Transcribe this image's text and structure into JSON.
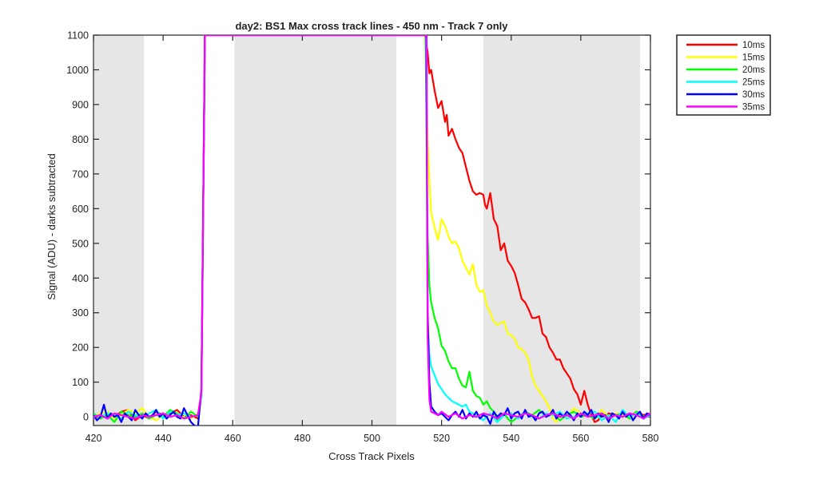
{
  "chart_data": {
    "type": "line",
    "title": "day2: BS1  Max cross track lines - 450 nm - Track 7 only",
    "xlabel": "Cross Track Pixels",
    "ylabel": "Signal (ADU) - darks subtracted",
    "xlim": [
      420,
      580
    ],
    "ylim": [
      -25,
      1100
    ],
    "x_ticks": [
      420,
      440,
      460,
      480,
      500,
      520,
      540,
      560,
      580
    ],
    "y_ticks": [
      0,
      100,
      200,
      300,
      400,
      500,
      600,
      700,
      800,
      900,
      1000,
      1100
    ],
    "grid": false,
    "legend_position": "outside-top-right",
    "shaded_regions": [
      [
        420,
        434.5
      ],
      [
        460.5,
        507
      ],
      [
        532,
        577
      ]
    ],
    "series": [
      {
        "name": "10ms",
        "color": "#ff0000",
        "x": [
          420,
          422,
          424,
          426,
          428,
          430,
          432,
          434,
          436,
          438,
          440,
          442,
          444,
          446,
          448,
          450,
          451,
          452,
          515.2,
          516,
          516.5,
          517,
          518,
          519,
          520,
          520.5,
          521,
          521.5,
          522,
          523,
          524,
          525,
          526,
          527,
          528,
          529,
          530,
          531,
          532,
          532.5,
          533,
          534,
          535,
          536,
          537,
          538,
          539,
          540,
          541,
          542,
          543,
          544,
          545,
          546,
          547,
          548,
          549,
          550,
          551,
          552,
          553,
          554,
          555,
          556,
          557,
          558,
          559,
          560,
          561,
          562,
          563,
          564,
          565,
          566,
          567,
          568,
          570,
          572,
          574,
          576,
          578,
          580
        ],
        "y": [
          5,
          -5,
          10,
          0,
          15,
          20,
          -10,
          5,
          -5,
          15,
          5,
          10,
          20,
          0,
          5,
          -5,
          60,
          1100,
          1100,
          1050,
          990,
          1000,
          940,
          890,
          910,
          880,
          850,
          870,
          810,
          830,
          800,
          775,
          760,
          720,
          680,
          650,
          640,
          645,
          640,
          610,
          600,
          645,
          570,
          550,
          480,
          500,
          450,
          435,
          415,
          380,
          340,
          330,
          310,
          285,
          285,
          290,
          240,
          230,
          200,
          185,
          165,
          165,
          140,
          125,
          110,
          80,
          65,
          35,
          75,
          35,
          5,
          -15,
          -10,
          5,
          0,
          10,
          5,
          10,
          0,
          15,
          5,
          10
        ]
      },
      {
        "name": "15ms",
        "color": "#ffff00",
        "x": [
          420,
          422,
          424,
          426,
          428,
          430,
          432,
          434,
          436,
          438,
          440,
          442,
          444,
          446,
          448,
          450,
          451,
          452,
          515.3,
          516,
          516.5,
          517,
          518,
          519,
          520,
          521,
          522,
          523,
          524,
          525,
          526,
          527,
          528,
          529,
          530,
          531,
          532,
          533,
          534,
          535,
          536,
          537,
          538,
          539,
          540,
          541,
          542,
          543,
          544,
          545,
          546,
          547,
          548,
          549,
          550,
          551,
          552,
          553,
          554,
          555,
          556,
          558,
          560,
          562,
          564,
          566,
          568,
          570,
          572,
          574,
          576,
          578,
          580
        ],
        "y": [
          0,
          10,
          15,
          -5,
          5,
          20,
          10,
          25,
          0,
          -10,
          5,
          15,
          5,
          0,
          -5,
          10,
          60,
          1100,
          1100,
          800,
          680,
          590,
          545,
          510,
          570,
          550,
          520,
          500,
          505,
          485,
          450,
          430,
          410,
          440,
          380,
          360,
          365,
          320,
          300,
          275,
          265,
          270,
          275,
          240,
          235,
          225,
          200,
          195,
          185,
          165,
          115,
          90,
          75,
          60,
          45,
          25,
          -5,
          -15,
          5,
          0,
          -5,
          25,
          10,
          5,
          -5,
          20,
          0,
          10,
          5,
          -5,
          15,
          0,
          10
        ]
      },
      {
        "name": "20ms",
        "color": "#00ff00",
        "x": [
          420,
          422,
          424,
          426,
          428,
          430,
          432,
          434,
          436,
          438,
          440,
          442,
          444,
          446,
          448,
          450,
          451,
          452,
          515.4,
          516,
          516.5,
          517,
          518,
          519,
          520,
          521,
          522,
          523,
          524,
          525,
          526,
          527,
          528,
          529,
          530,
          531,
          532,
          533,
          534,
          535,
          536,
          537,
          538,
          539,
          540,
          542,
          544,
          546,
          548,
          550,
          552,
          554,
          556,
          558,
          560,
          562,
          564,
          566,
          568,
          570,
          572,
          574,
          576,
          578,
          580
        ],
        "y": [
          10,
          -5,
          5,
          -15,
          15,
          5,
          0,
          10,
          -5,
          5,
          0,
          20,
          10,
          -5,
          15,
          0,
          60,
          1100,
          1100,
          520,
          380,
          330,
          285,
          255,
          205,
          190,
          160,
          140,
          140,
          110,
          90,
          85,
          130,
          75,
          60,
          55,
          35,
          45,
          25,
          15,
          -10,
          0,
          10,
          -5,
          -15,
          0,
          15,
          5,
          20,
          0,
          10,
          -10,
          5,
          15,
          0,
          5,
          -5,
          10,
          0,
          5,
          10,
          -5,
          15,
          0,
          5
        ]
      },
      {
        "name": "25ms",
        "color": "#00ffff",
        "x": [
          420,
          422,
          424,
          426,
          428,
          430,
          432,
          434,
          436,
          438,
          440,
          442,
          444,
          446,
          448,
          450,
          451,
          452,
          515.5,
          516,
          516.5,
          517,
          518,
          519,
          520,
          521,
          522,
          523,
          524,
          525,
          526,
          527,
          528,
          530,
          532,
          534,
          536,
          538,
          540,
          542,
          544,
          546,
          548,
          550,
          552,
          554,
          556,
          558,
          560,
          562,
          564,
          566,
          568,
          570,
          572,
          574,
          576,
          578,
          580
        ],
        "y": [
          5,
          0,
          10,
          5,
          -5,
          15,
          5,
          0,
          10,
          20,
          -5,
          15,
          5,
          10,
          0,
          5,
          60,
          1100,
          1100,
          280,
          180,
          145,
          120,
          95,
          80,
          65,
          55,
          45,
          40,
          35,
          30,
          35,
          15,
          5,
          -10,
          10,
          -15,
          5,
          10,
          -5,
          15,
          0,
          -5,
          10,
          5,
          15,
          -5,
          0,
          5,
          10,
          15,
          -10,
          5,
          -15,
          20,
          0,
          10,
          -5,
          5
        ]
      },
      {
        "name": "30ms",
        "color": "#0000ff",
        "x": [
          420,
          421,
          422,
          423,
          424,
          425,
          426,
          427,
          428,
          429,
          430,
          431,
          432,
          433,
          434,
          435,
          436,
          437,
          438,
          439,
          440,
          441,
          442,
          443,
          444,
          445,
          446,
          447,
          448,
          449,
          450,
          451,
          452,
          515.6,
          516,
          516.5,
          517,
          518,
          519,
          520,
          521,
          522,
          523,
          524,
          525,
          526,
          527,
          528,
          529,
          530,
          531,
          532,
          533,
          534,
          535,
          536,
          537,
          538,
          539,
          540,
          541,
          542,
          543,
          544,
          545,
          546,
          547,
          548,
          549,
          550,
          551,
          552,
          553,
          554,
          555,
          556,
          557,
          558,
          559,
          560,
          561,
          562,
          563,
          564,
          565,
          566,
          567,
          568,
          569,
          570,
          571,
          572,
          573,
          574,
          575,
          576,
          577,
          578,
          579,
          580
        ],
        "y": [
          5,
          -10,
          0,
          35,
          -5,
          10,
          0,
          5,
          -15,
          10,
          0,
          -10,
          20,
          5,
          -5,
          10,
          0,
          5,
          20,
          0,
          10,
          -5,
          5,
          15,
          0,
          -5,
          25,
          5,
          -15,
          -25,
          -30,
          80,
          1100,
          1100,
          300,
          100,
          30,
          15,
          5,
          10,
          0,
          -10,
          5,
          15,
          0,
          20,
          -5,
          10,
          0,
          15,
          -5,
          5,
          0,
          -20,
          15,
          0,
          10,
          5,
          25,
          -5,
          10,
          15,
          -5,
          20,
          0,
          5,
          -10,
          10,
          15,
          0,
          5,
          20,
          -5,
          10,
          0,
          15,
          5,
          -10,
          10,
          0,
          15,
          5,
          20,
          -5,
          10,
          0,
          5,
          -15,
          10,
          5,
          -5,
          15,
          0,
          10,
          -10,
          5,
          15,
          -5,
          10,
          5
        ]
      },
      {
        "name": "35ms",
        "color": "#ff00ff",
        "x": [
          420,
          422,
          424,
          426,
          428,
          430,
          432,
          434,
          436,
          438,
          440,
          442,
          444,
          446,
          448,
          450,
          451,
          452,
          515.7,
          516,
          516.5,
          517,
          518,
          519,
          520,
          522,
          524,
          526,
          528,
          530,
          532,
          534,
          536,
          538,
          540,
          542,
          544,
          546,
          548,
          550,
          552,
          554,
          556,
          558,
          560,
          562,
          564,
          566,
          568,
          570,
          572,
          574,
          576,
          578,
          580
        ],
        "y": [
          0,
          5,
          -5,
          10,
          5,
          0,
          -5,
          5,
          0,
          5,
          10,
          0,
          5,
          -5,
          0,
          5,
          70,
          1100,
          1100,
          230,
          50,
          15,
          10,
          5,
          15,
          0,
          10,
          -5,
          5,
          0,
          10,
          5,
          -5,
          10,
          5,
          0,
          10,
          5,
          -5,
          5,
          10,
          0,
          5,
          -5,
          10,
          0,
          5,
          10,
          -5,
          5,
          0,
          10,
          5,
          -5,
          10
        ]
      }
    ]
  }
}
